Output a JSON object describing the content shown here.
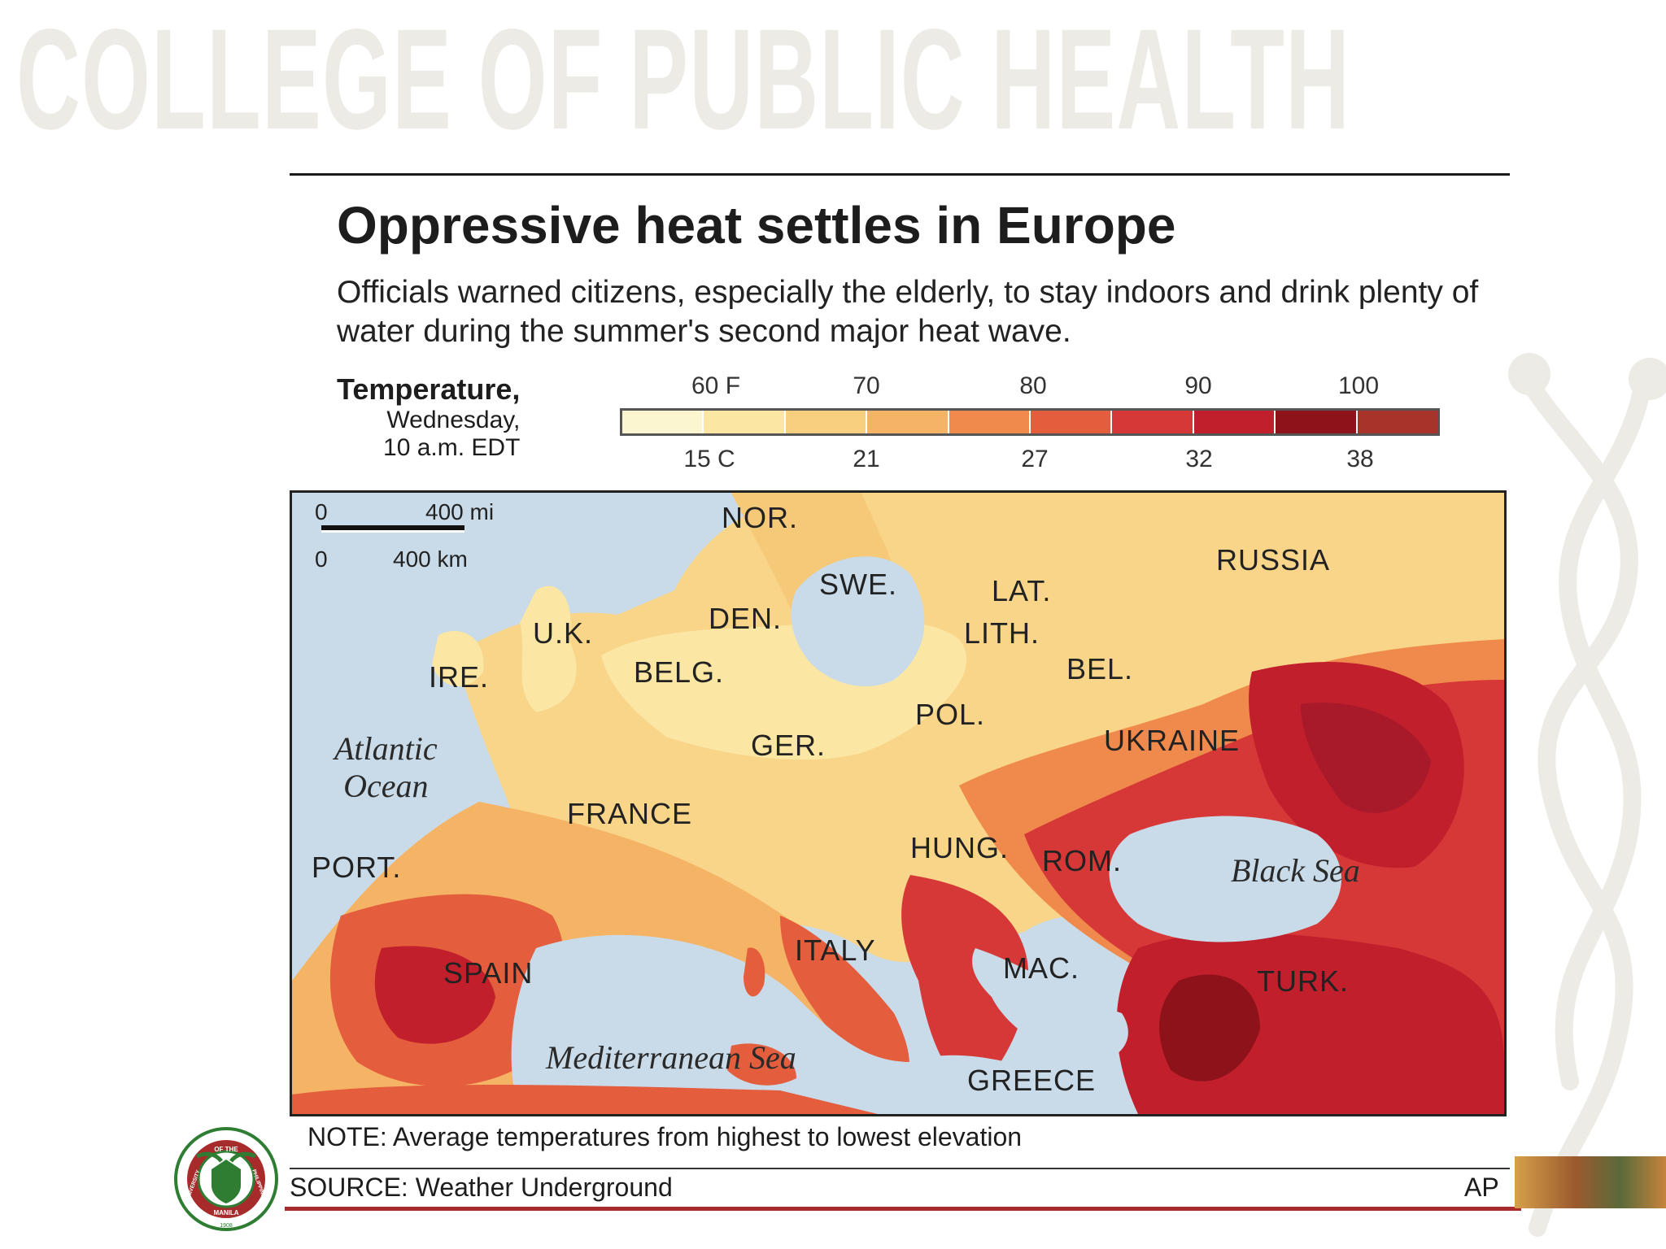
{
  "banner": "COLLEGE OF PUBLIC HEALTH",
  "title": "Oppressive heat settles in Europe",
  "subtitle": "Officials warned citizens, especially the elderly, to stay indoors and drink plenty of water during the summer's second major heat wave.",
  "legend": {
    "label_main": "Temperature,",
    "label_day": "Wednesday,",
    "label_time": "10 a.m. EDT",
    "fahrenheit_ticks": [
      "60 F",
      "70",
      "80",
      "90",
      "100"
    ],
    "celsius_ticks": [
      "15 C",
      "21",
      "27",
      "32",
      "38"
    ],
    "colors": [
      "#fbf6cf",
      "#fbe6a4",
      "#f8cf7f",
      "#f5b365",
      "#f08a4c",
      "#e45d3d",
      "#d63838",
      "#c21f2c",
      "#8e1219",
      "#a8332a"
    ]
  },
  "scale": {
    "miles_zero": "0",
    "miles_label": "400 mi",
    "km_zero": "0",
    "km_label": "400 km"
  },
  "countries": {
    "nor": "NOR.",
    "swe": "SWE.",
    "den": "DEN.",
    "uk": "U.K.",
    "ire": "IRE.",
    "belg": "BELG.",
    "ger": "GER.",
    "pol": "POL.",
    "lat": "LAT.",
    "lith": "LITH.",
    "bel": "BEL.",
    "russia": "RUSSIA",
    "ukraine": "UKRAINE",
    "france": "FRANCE",
    "hung": "HUNG.",
    "rom": "ROM.",
    "port": "PORT.",
    "spain": "SPAIN",
    "italy": "ITALY",
    "mac": "MAC.",
    "turk": "TURK.",
    "greece": "GREECE"
  },
  "waters": {
    "atlantic_1": "Atlantic",
    "atlantic_2": "Ocean",
    "black_sea": "Black Sea",
    "mediterranean": "Mediterranean Sea"
  },
  "note": "NOTE: Average temperatures from highest to lowest elevation",
  "source": "SOURCE: Weather Underground",
  "credit": "AP",
  "seal": {
    "top_text": "OF THE",
    "left_text": "UNIVERSITY",
    "right_text": "PHILIPPINES",
    "bottom_text": "MANILA",
    "year": "1908"
  }
}
